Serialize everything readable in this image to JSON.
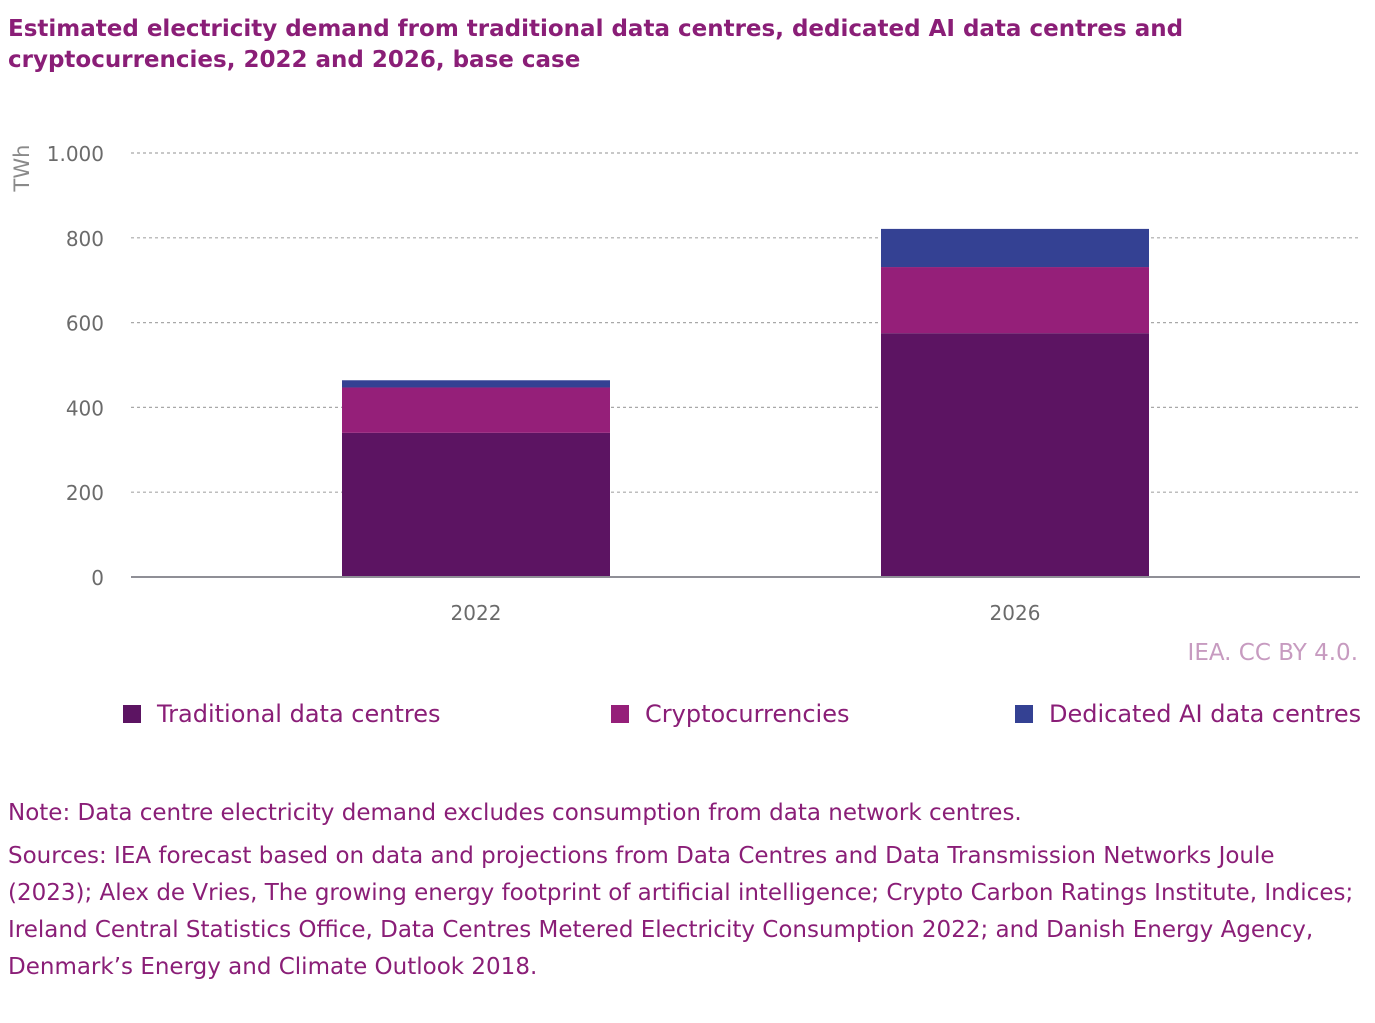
{
  "chart_data": {
    "type": "bar",
    "stacked": true,
    "title": "Estimated electricity demand from traditional data centres, dedicated AI data centres and cryptocurrencies, 2022 and 2026, base case",
    "xlabel": "",
    "ylabel": "TWh",
    "ylim": [
      0,
      1000
    ],
    "yticks": [
      0,
      200,
      400,
      600,
      800,
      1000
    ],
    "ytick_labels": [
      "0",
      "200",
      "400",
      "600",
      "800",
      "1.000"
    ],
    "grid": true,
    "legend_position": "bottom",
    "categories": [
      "2022",
      "2026"
    ],
    "series": [
      {
        "name": "Traditional data centres",
        "values": [
          340,
          575
        ],
        "color": "#5c1462"
      },
      {
        "name": "Cryptocurrencies",
        "values": [
          107,
          156
        ],
        "color": "#951f79"
      },
      {
        "name": "Dedicated AI data centres",
        "values": [
          17,
          90
        ],
        "color": "#344193"
      }
    ]
  },
  "credit": "IEA. CC BY 4.0.",
  "note": "Note: Data centre electricity demand excludes consumption from data network centres.",
  "sources": "Sources: IEA forecast based on data and projections from Data Centres and Data Transmission Networks Joule (2023); Alex de Vries, The growing energy footprint of artificial intelligence; Crypto Carbon Ratings Institute, Indices; Ireland Central Statistics Office, Data Centres Metered Electricity Consumption 2022; and Danish Energy Agency, Denmark’s Energy and Climate Outlook 2018."
}
